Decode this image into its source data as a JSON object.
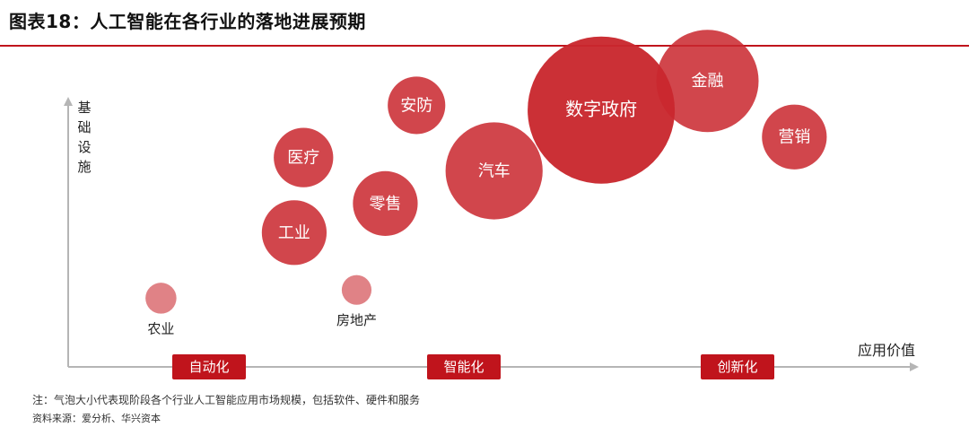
{
  "header": {
    "title": "图表18：人工智能在各行业的落地进展预期"
  },
  "notes": {
    "note": "注：气泡大小代表现阶段各个行业人工智能应用市场规模，包括软件、硬件和服务",
    "source": "资料来源：爱分析、华兴资本"
  },
  "colors": {
    "accent": "#c0141c",
    "bubble": "#c9282e"
  },
  "chart_data": {
    "type": "scatter",
    "title": "",
    "xlabel": "应用价值",
    "ylabel": "基础设施",
    "xlim": [
      0,
      100
    ],
    "ylim": [
      0,
      100
    ],
    "grid": false,
    "stages": [
      "自动化",
      "智能化",
      "创新化"
    ],
    "bubbles": [
      {
        "label": "农业",
        "x": 11.0,
        "y": 21.7,
        "size": 1.3
      },
      {
        "label": "房地产",
        "x": 34.2,
        "y": 24.3,
        "size": 1.2
      },
      {
        "label": "工业",
        "x": 26.8,
        "y": 42.4,
        "size": 5.7
      },
      {
        "label": "医疗",
        "x": 27.9,
        "y": 66.1,
        "size": 4.8
      },
      {
        "label": "零售",
        "x": 37.6,
        "y": 51.6,
        "size": 5.7
      },
      {
        "label": "安防",
        "x": 41.3,
        "y": 82.6,
        "size": 4.5
      },
      {
        "label": "汽车",
        "x": 50.5,
        "y": 61.9,
        "size": 12.8
      },
      {
        "label": "数字政府",
        "x": 63.2,
        "y": 81.1,
        "size": 29.4
      },
      {
        "label": "金融",
        "x": 75.8,
        "y": 90.3,
        "size": 14.2
      },
      {
        "label": "营销",
        "x": 86.1,
        "y": 72.6,
        "size": 5.7
      }
    ]
  }
}
